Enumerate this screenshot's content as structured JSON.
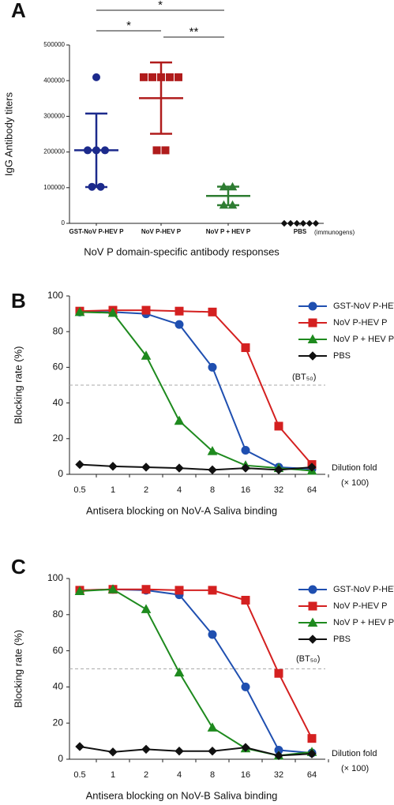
{
  "chart_data": [
    {
      "type": "dot",
      "panel": "A",
      "ylabel": "IgG Antibody titers",
      "xlabel": "NoV P domain-specific antibody responses",
      "x_note": "(immunogens)",
      "ylim": [
        0,
        500000
      ],
      "yticks": [
        0,
        100000,
        200000,
        300000,
        400000,
        500000
      ],
      "significance": [
        "*",
        "*",
        "**"
      ],
      "groups": [
        {
          "name": "GST-NoV P-HEV P",
          "color": "#1c2a8c",
          "marker": "circle",
          "values": [
            409600,
            204800,
            204800,
            204800,
            102400,
            102400
          ],
          "mean": 204800,
          "sd": 103000
        },
        {
          "name": "NoV P-HEV P",
          "color": "#b01c1c",
          "marker": "square",
          "values": [
            409600,
            409600,
            409600,
            409600,
            409600,
            204800,
            204800
          ],
          "mean": 351000,
          "sd": 100000
        },
        {
          "name": "NoV P + HEV P",
          "color": "#2e7d32",
          "marker": "triangle",
          "values": [
            102400,
            102400,
            51200,
            51200
          ],
          "mean": 76800,
          "sd": 26000
        },
        {
          "name": "PBS",
          "color": "#111111",
          "marker": "diamond",
          "values": [
            0,
            0,
            0,
            0,
            0,
            0
          ]
        }
      ]
    },
    {
      "type": "line",
      "panel": "B",
      "ylabel": "Blocking rate (%)",
      "xlabel": "Antisera blocking on NoV-A Saliva binding",
      "annotations": [
        "Dilution fold",
        "(× 100)"
      ],
      "reference": {
        "value": 50,
        "label": "(BT₅₀)"
      },
      "categories": [
        "0.5",
        "1",
        "2",
        "4",
        "8",
        "16",
        "32",
        "64"
      ],
      "ylim": [
        0,
        100
      ],
      "yticks": [
        0,
        20,
        40,
        60,
        80,
        100
      ],
      "series": [
        {
          "name": "GST-NoV P-HEV P",
          "color": "#1f4fb0",
          "marker": "circle",
          "values": [
            91,
            91,
            90,
            84,
            60,
            13.5,
            4,
            3
          ]
        },
        {
          "name": "NoV P-HEV P",
          "color": "#d42020",
          "marker": "square",
          "values": [
            91.5,
            92,
            92,
            91.5,
            91,
            71,
            27,
            5.5
          ]
        },
        {
          "name": "NoV P + HEV P",
          "color": "#1e8a1e",
          "marker": "triangle",
          "values": [
            91,
            90.5,
            66.5,
            30,
            13,
            5,
            3.5,
            2
          ]
        },
        {
          "name": "PBS",
          "color": "#111111",
          "marker": "diamond",
          "values": [
            5.5,
            4.5,
            4,
            3.5,
            2.5,
            3.5,
            2.5,
            4
          ]
        }
      ]
    },
    {
      "type": "line",
      "panel": "C",
      "ylabel": "Blocking rate (%)",
      "xlabel": "Antisera blocking on NoV-B Saliva binding",
      "annotations": [
        "Dilution fold",
        "(× 100)"
      ],
      "reference": {
        "value": 50,
        "label": "(BT₅₀)"
      },
      "categories": [
        "0.5",
        "1",
        "2",
        "4",
        "8",
        "16",
        "32",
        "64"
      ],
      "ylim": [
        0,
        100
      ],
      "yticks": [
        0,
        20,
        40,
        60,
        80,
        100
      ],
      "series": [
        {
          "name": "GST-NoV P-HEV P",
          "color": "#1f4fb0",
          "marker": "circle",
          "values": [
            93.5,
            94,
            93.5,
            91,
            69,
            40,
            5,
            3.5
          ]
        },
        {
          "name": "NoV P-HEV P",
          "color": "#d42020",
          "marker": "square",
          "values": [
            93.5,
            94,
            94,
            93.5,
            93.5,
            88,
            47.5,
            11.5
          ]
        },
        {
          "name": "NoV P + HEV P",
          "color": "#1e8a1e",
          "marker": "triangle",
          "values": [
            93,
            94,
            83,
            48,
            17.5,
            6,
            2,
            4
          ]
        },
        {
          "name": "PBS",
          "color": "#111111",
          "marker": "diamond",
          "values": [
            7,
            4,
            5.5,
            4.5,
            4.5,
            6.5,
            2,
            3
          ]
        }
      ]
    }
  ]
}
